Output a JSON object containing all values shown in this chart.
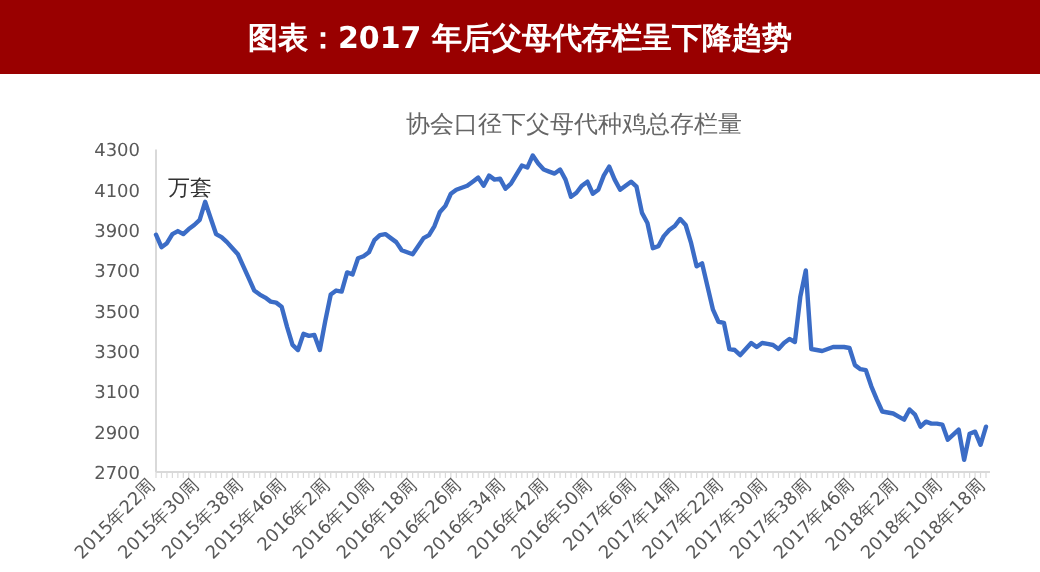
{
  "chart_data": {
    "type": "line",
    "title": "图表：2017 年后父母代存栏呈下降趋势",
    "subtitle": "协会口径下父母代种鸡总存栏量",
    "ylabel": "万套",
    "categories": [
      "2015年22周",
      null,
      null,
      null,
      null,
      null,
      null,
      null,
      "2015年30周",
      null,
      null,
      null,
      null,
      null,
      null,
      null,
      "2015年38周",
      null,
      null,
      null,
      null,
      null,
      null,
      null,
      "2015年46周",
      null,
      null,
      null,
      null,
      null,
      null,
      null,
      "2016年2周",
      null,
      null,
      null,
      null,
      null,
      null,
      null,
      "2016年10周",
      null,
      null,
      null,
      null,
      null,
      null,
      null,
      "2016年18周",
      null,
      null,
      null,
      null,
      null,
      null,
      null,
      "2016年26周",
      null,
      null,
      null,
      null,
      null,
      null,
      null,
      "2016年34周",
      null,
      null,
      null,
      null,
      null,
      null,
      null,
      "2016年42周",
      null,
      null,
      null,
      null,
      null,
      null,
      null,
      "2016年50周",
      null,
      null,
      null,
      null,
      null,
      null,
      null,
      "2017年6周",
      null,
      null,
      null,
      null,
      null,
      null,
      null,
      "2017年14周",
      null,
      null,
      null,
      null,
      null,
      null,
      null,
      "2017年22周",
      null,
      null,
      null,
      null,
      null,
      null,
      null,
      "2017年30周",
      null,
      null,
      null,
      null,
      null,
      null,
      null,
      "2017年38周",
      null,
      null,
      null,
      null,
      null,
      null,
      null,
      "2017年46周",
      null,
      null,
      null,
      null,
      null,
      null,
      null,
      "2018年2周",
      null,
      null,
      null,
      null,
      null,
      null,
      null,
      "2018年10周",
      null,
      null,
      null,
      null,
      null,
      null,
      null,
      "2018年18周"
    ],
    "values": [
      3877,
      3815,
      3835,
      3880,
      3895,
      3880,
      3905,
      3925,
      3950,
      4040,
      3960,
      3880,
      3865,
      3840,
      3810,
      3780,
      3720,
      3660,
      3600,
      3580,
      3565,
      3545,
      3540,
      3520,
      3420,
      3330,
      3305,
      3385,
      3375,
      3380,
      3305,
      3450,
      3580,
      3600,
      3595,
      3690,
      3680,
      3760,
      3770,
      3790,
      3850,
      3875,
      3880,
      3860,
      3840,
      3800,
      3790,
      3780,
      3820,
      3860,
      3875,
      3920,
      3990,
      4020,
      4080,
      4100,
      4110,
      4120,
      4140,
      4160,
      4120,
      4170,
      4150,
      4155,
      4105,
      4130,
      4175,
      4220,
      4210,
      4270,
      4230,
      4200,
      4190,
      4180,
      4200,
      4150,
      4065,
      4085,
      4120,
      4140,
      4080,
      4100,
      4170,
      4215,
      4150,
      4100,
      4120,
      4140,
      4115,
      3985,
      3935,
      3810,
      3820,
      3870,
      3900,
      3920,
      3955,
      3925,
      3835,
      3720,
      3735,
      3620,
      3505,
      3445,
      3440,
      3310,
      3305,
      3280,
      3310,
      3340,
      3320,
      3340,
      3335,
      3330,
      3310,
      3340,
      3360,
      3345,
      3570,
      3700,
      3310,
      3305,
      3300,
      3310,
      3320,
      3320,
      3320,
      3315,
      3230,
      3210,
      3205,
      3125,
      3060,
      3000,
      2995,
      2990,
      2975,
      2960,
      3010,
      2985,
      2925,
      2950,
      2940,
      2940,
      2935,
      2860,
      2885,
      2910,
      2760,
      2890,
      2900,
      2835,
      2925
    ],
    "color": "#3b6cc6",
    "ylim": [
      2700,
      4300
    ],
    "yticks": [
      2700,
      2900,
      3100,
      3300,
      3500,
      3700,
      3900,
      4100,
      4300
    ]
  }
}
